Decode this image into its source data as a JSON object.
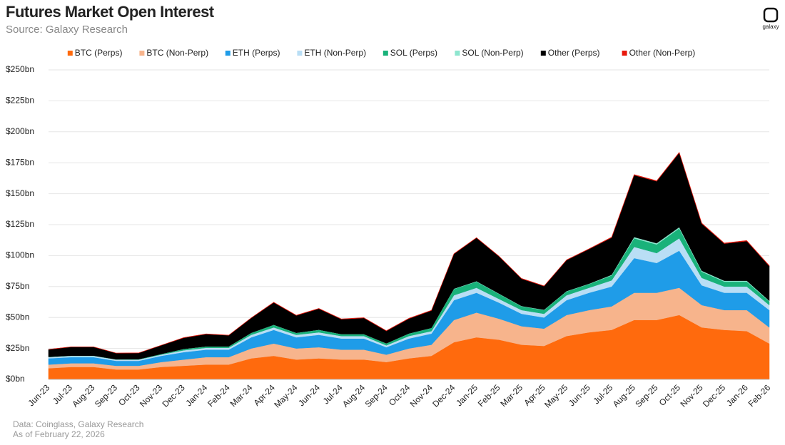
{
  "logo": "galaxy",
  "chart_data": {
    "type": "stacked-area",
    "title": "Futures Market Open Interest",
    "subtitle": "Source: Galaxy Research",
    "notes": [
      "Data: Coinglass, Galaxy Research",
      "As of February 22, 2026"
    ],
    "categories": [
      "Jun-23",
      "Jul-23",
      "Aug-23",
      "Sep-23",
      "Oct-23",
      "Nov-23",
      "Dec-23",
      "Jan-24",
      "Feb-24",
      "Mar-24",
      "Apr-24",
      "May-24",
      "Jun-24",
      "Jul-24",
      "Aug-24",
      "Sep-24",
      "Oct-24",
      "Nov-24",
      "Dec-24",
      "Jan-25",
      "Feb-25",
      "Mar-25",
      "Apr-25",
      "May-25",
      "Jun-25",
      "Jul-25",
      "Aug-25",
      "Sep-25",
      "Oct-25",
      "Nov-25",
      "Dec-25",
      "Jan-26",
      "Feb-26"
    ],
    "series": [
      {
        "name": "BTC (Perps)",
        "color": "#ff6a0d",
        "values": [
          9,
          10,
          10,
          8,
          8,
          10,
          11,
          12,
          12,
          17,
          19,
          16,
          17,
          16,
          16,
          14,
          17,
          19,
          30,
          34,
          32,
          28,
          27,
          35,
          38,
          40,
          48,
          48,
          52,
          42,
          40,
          39,
          29
        ]
      },
      {
        "name": "BTC (Non-Perp)",
        "color": "#f7b48c",
        "values": [
          3,
          3,
          3,
          3,
          3,
          4,
          5,
          6,
          6,
          8,
          10,
          9,
          9,
          8,
          8,
          6,
          8,
          9,
          18,
          20,
          17,
          15,
          14,
          17,
          18,
          19,
          22,
          22,
          22,
          18,
          16,
          17,
          13
        ]
      },
      {
        "name": "ETH (Perps)",
        "color": "#1f9ce8",
        "values": [
          5,
          5,
          5,
          4,
          4,
          5,
          6,
          6,
          6,
          9,
          11,
          9,
          10,
          9,
          9,
          6,
          8,
          9,
          16,
          16,
          13,
          10,
          9,
          12,
          14,
          16,
          28,
          24,
          30,
          16,
          14,
          14,
          14
        ]
      },
      {
        "name": "ETH (Non-Perp)",
        "color": "#b9def5",
        "values": [
          1,
          1,
          1,
          1,
          1,
          1,
          1.5,
          1.5,
          1.5,
          2,
          2,
          2,
          2,
          2,
          2,
          1.5,
          2,
          2,
          4,
          4,
          3,
          3,
          3,
          4,
          4,
          5,
          9,
          8,
          10,
          6,
          5,
          5,
          4
        ]
      },
      {
        "name": "SOL (Perps)",
        "color": "#19b27a",
        "values": [
          0.2,
          0.2,
          0.2,
          0.2,
          0.3,
          0.5,
          1,
          1,
          1,
          1.5,
          2,
          1.5,
          2,
          1.5,
          1.5,
          1.5,
          2,
          2.5,
          5,
          5,
          4,
          3,
          3,
          3,
          3,
          4,
          7,
          7,
          8,
          5,
          4,
          4,
          3
        ]
      },
      {
        "name": "SOL (Non-Perp)",
        "color": "#8ee6cf",
        "values": [
          0,
          0,
          0,
          0,
          0,
          0,
          0.1,
          0.1,
          0.1,
          0.1,
          0.1,
          0.1,
          0.1,
          0.1,
          0.1,
          0.1,
          0.1,
          0.1,
          0.3,
          0.3,
          0.3,
          0.3,
          0.3,
          0.3,
          0.3,
          0.5,
          1,
          1,
          1,
          0.8,
          0.7,
          0.7,
          0.5
        ]
      },
      {
        "name": "Other (Perps)",
        "color": "#000000",
        "values": [
          6,
          7,
          7,
          5,
          5,
          7,
          9,
          10,
          9,
          12,
          18,
          14,
          17,
          12,
          13,
          10,
          12,
          14,
          28,
          35,
          30,
          22,
          19,
          25,
          28,
          30,
          50,
          50,
          60,
          38,
          30,
          32,
          28
        ]
      },
      {
        "name": "Other (Non-Perp)",
        "color": "#e8180c",
        "values": [
          0.1,
          0.1,
          0.1,
          0.1,
          0.1,
          0.1,
          0.2,
          0.2,
          0.2,
          0.2,
          0.3,
          0.3,
          0.3,
          0.3,
          0.3,
          0.3,
          0.3,
          0.3,
          0.3,
          0.3,
          0.3,
          0.3,
          0.3,
          0.3,
          0.3,
          0.5,
          0.5,
          0.5,
          0.5,
          0.5,
          0.5,
          0.5,
          0.5
        ]
      }
    ],
    "ylim": [
      0,
      250
    ],
    "yticks": [
      {
        "value": 0,
        "label": "$0bn"
      },
      {
        "value": 25,
        "label": "$25bn"
      },
      {
        "value": 50,
        "label": "$50bn"
      },
      {
        "value": 75,
        "label": "$75bn"
      },
      {
        "value": 100,
        "label": "$100bn"
      },
      {
        "value": 125,
        "label": "$125bn"
      },
      {
        "value": 150,
        "label": "$150bn"
      },
      {
        "value": 175,
        "label": "$175bn"
      },
      {
        "value": 200,
        "label": "$200bn"
      },
      {
        "value": 225,
        "label": "$225bn"
      },
      {
        "value": 250,
        "label": "$250bn"
      }
    ],
    "grid": true,
    "legend": "top"
  }
}
